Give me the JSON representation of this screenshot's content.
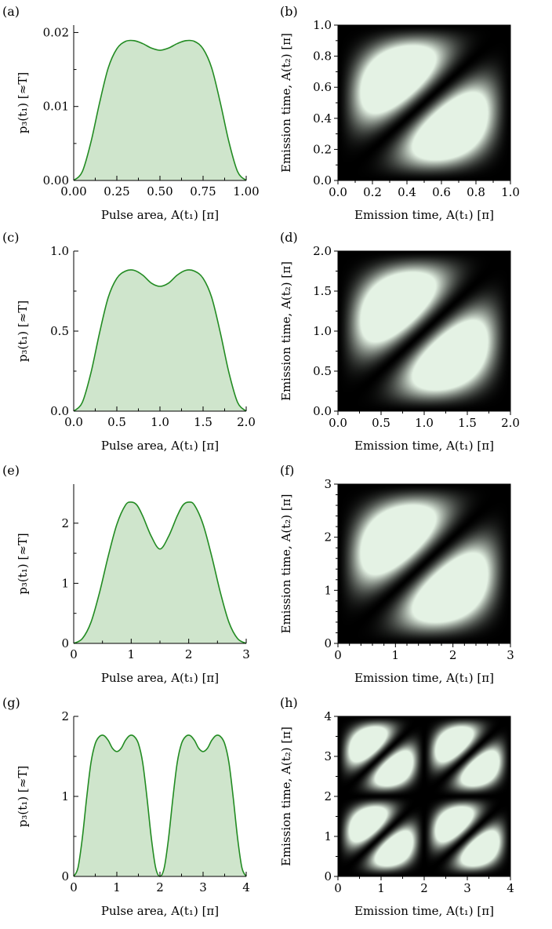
{
  "chart_data": [
    {
      "panel": "(a)",
      "type": "area",
      "xlabel": "Pulse area, A(t₁) [π]",
      "ylabel": "p₃(t₁) [≈T]",
      "xlim": [
        0,
        1
      ],
      "ylim": [
        0,
        0.021
      ],
      "xticks": [
        "0.00",
        "0.25",
        "0.50",
        "0.75",
        "1.00"
      ],
      "yticks": [
        "0.00",
        "0.01",
        "0.02"
      ],
      "scale": 1,
      "x": [
        0,
        0.05,
        0.1,
        0.15,
        0.2,
        0.25,
        0.3,
        0.35,
        0.4,
        0.45,
        0.5,
        0.55,
        0.6,
        0.65,
        0.7,
        0.75,
        0.8,
        0.85,
        0.9,
        0.95,
        1
      ],
      "y": [
        0,
        0.0012,
        0.0052,
        0.0105,
        0.0152,
        0.0178,
        0.0188,
        0.0189,
        0.0185,
        0.0179,
        0.0176,
        0.0179,
        0.0185,
        0.0189,
        0.0188,
        0.0178,
        0.0152,
        0.0105,
        0.0052,
        0.0012,
        0
      ],
      "color": "#228B22",
      "fill": "#CFE5CC"
    },
    {
      "panel": "(b)",
      "type": "heatmap",
      "xlabel": "Emission time, A(t₁) [π]",
      "ylabel": "Emission time, A(t₂) [π]",
      "xlim": [
        0,
        1
      ],
      "ylim": [
        0,
        1
      ],
      "xticks": [
        "0.0",
        "0.2",
        "0.4",
        "0.6",
        "0.8",
        "1.0"
      ],
      "yticks": [
        "0.0",
        "0.2",
        "0.4",
        "0.6",
        "0.8",
        "1.0"
      ],
      "periods": 1,
      "blobs": [
        {
          "x": 0.33,
          "y": 0.67
        },
        {
          "x": 0.67,
          "y": 0.33
        }
      ],
      "colormap": "black-to-pale-green"
    },
    {
      "panel": "(c)",
      "type": "area",
      "xlabel": "Pulse area, A(t₁) [π]",
      "ylabel": "p₃(t₁) [≈T]",
      "xlim": [
        0,
        2
      ],
      "ylim": [
        0,
        1.0
      ],
      "xticks": [
        "0.0",
        "0.5",
        "1.0",
        "1.5",
        "2.0"
      ],
      "yticks": [
        "0.0",
        "0.5",
        "1.0"
      ],
      "scale": 2,
      "x": [
        0,
        0.1,
        0.2,
        0.3,
        0.4,
        0.5,
        0.6,
        0.7,
        0.8,
        0.9,
        1.0,
        1.1,
        1.2,
        1.3,
        1.4,
        1.5,
        1.6,
        1.7,
        1.8,
        1.9,
        2.0
      ],
      "y": [
        0,
        0.055,
        0.24,
        0.49,
        0.71,
        0.83,
        0.875,
        0.88,
        0.85,
        0.8,
        0.78,
        0.8,
        0.85,
        0.88,
        0.875,
        0.83,
        0.71,
        0.49,
        0.24,
        0.055,
        0
      ],
      "color": "#228B22",
      "fill": "#CFE5CC"
    },
    {
      "panel": "(d)",
      "type": "heatmap",
      "xlabel": "Emission time, A(t₁) [π]",
      "ylabel": "Emission time, A(t₂) [π]",
      "xlim": [
        0,
        2
      ],
      "ylim": [
        0,
        2
      ],
      "xticks": [
        "0.0",
        "0.5",
        "1.0",
        "1.5",
        "2.0"
      ],
      "yticks": [
        "0.0",
        "0.5",
        "1.0",
        "1.5",
        "2.0"
      ],
      "periods": 1,
      "blobs": [
        {
          "x": 0.67,
          "y": 1.33
        },
        {
          "x": 1.33,
          "y": 0.67
        }
      ],
      "colormap": "black-to-pale-green"
    },
    {
      "panel": "(e)",
      "type": "area",
      "xlabel": "Pulse area, A(t₁) [π]",
      "ylabel": "p₃(t₁) [≈T]",
      "xlim": [
        0,
        3
      ],
      "ylim": [
        0,
        2.65
      ],
      "xticks": [
        "0",
        "1",
        "2",
        "3"
      ],
      "yticks": [
        "0",
        "1",
        "2"
      ],
      "scale": 3,
      "x": [
        0,
        0.15,
        0.3,
        0.45,
        0.6,
        0.75,
        0.9,
        1.0,
        1.1,
        1.2,
        1.35,
        1.5,
        1.65,
        1.8,
        1.9,
        2.0,
        2.1,
        2.25,
        2.4,
        2.55,
        2.7,
        2.85,
        3.0
      ],
      "y": [
        0,
        0.08,
        0.35,
        0.85,
        1.45,
        1.98,
        2.3,
        2.35,
        2.3,
        2.12,
        1.78,
        1.57,
        1.78,
        2.12,
        2.3,
        2.35,
        2.3,
        1.98,
        1.45,
        0.85,
        0.35,
        0.08,
        0
      ],
      "color": "#228B22",
      "fill": "#CFE5CC"
    },
    {
      "panel": "(f)",
      "type": "heatmap",
      "xlabel": "Emission time, A(t₁) [π]",
      "ylabel": "Emission time, A(t₂) [π]",
      "xlim": [
        0,
        3
      ],
      "ylim": [
        0,
        3
      ],
      "xticks": [
        "0",
        "1",
        "2",
        "3"
      ],
      "yticks": [
        "0",
        "1",
        "2",
        "3"
      ],
      "periods": 1,
      "blobs": [
        {
          "x": 1.0,
          "y": 2.0
        },
        {
          "x": 2.0,
          "y": 1.0
        }
      ],
      "colormap": "black-to-pale-green"
    },
    {
      "panel": "(g)",
      "type": "area",
      "xlabel": "Pulse area, A(t₁) [π]",
      "ylabel": "p₃(t₁) [≈T]",
      "xlim": [
        0,
        4
      ],
      "ylim": [
        0,
        2.0
      ],
      "xticks": [
        "0",
        "1",
        "2",
        "3",
        "4"
      ],
      "yticks": [
        "0",
        "1",
        "2"
      ],
      "scale": 2,
      "x": [
        0,
        0.1,
        0.2,
        0.3,
        0.4,
        0.5,
        0.6,
        0.7,
        0.8,
        0.9,
        1.0,
        1.1,
        1.2,
        1.3,
        1.4,
        1.5,
        1.6,
        1.7,
        1.8,
        1.9,
        2.0,
        2.1,
        2.2,
        2.3,
        2.4,
        2.5,
        2.6,
        2.7,
        2.8,
        2.9,
        3.0,
        3.1,
        3.2,
        3.3,
        3.4,
        3.5,
        3.6,
        3.7,
        3.8,
        3.9,
        4.0
      ],
      "y": [
        0,
        0.11,
        0.48,
        0.98,
        1.42,
        1.66,
        1.75,
        1.76,
        1.7,
        1.6,
        1.56,
        1.6,
        1.7,
        1.76,
        1.75,
        1.66,
        1.42,
        0.98,
        0.48,
        0.11,
        0,
        0.11,
        0.48,
        0.98,
        1.42,
        1.66,
        1.75,
        1.76,
        1.7,
        1.6,
        1.56,
        1.6,
        1.7,
        1.76,
        1.75,
        1.66,
        1.42,
        0.98,
        0.48,
        0.11,
        0
      ],
      "color": "#228B22",
      "fill": "#CFE5CC"
    },
    {
      "panel": "(h)",
      "type": "heatmap",
      "xlabel": "Emission time, A(t₁) [π]",
      "ylabel": "Emission time, A(t₂) [π]",
      "xlim": [
        0,
        4
      ],
      "ylim": [
        0,
        4
      ],
      "xticks": [
        "0",
        "1",
        "2",
        "3",
        "4"
      ],
      "yticks": [
        "0",
        "1",
        "2",
        "3",
        "4"
      ],
      "periods": 2,
      "blobs": [
        {
          "x": 0.67,
          "y": 1.33
        },
        {
          "x": 1.33,
          "y": 0.67
        },
        {
          "x": 2.67,
          "y": 1.33
        },
        {
          "x": 3.33,
          "y": 0.67
        },
        {
          "x": 0.67,
          "y": 3.33
        },
        {
          "x": 1.33,
          "y": 2.67
        },
        {
          "x": 2.67,
          "y": 3.33
        },
        {
          "x": 3.33,
          "y": 2.67
        }
      ],
      "colormap": "black-to-pale-green"
    }
  ]
}
